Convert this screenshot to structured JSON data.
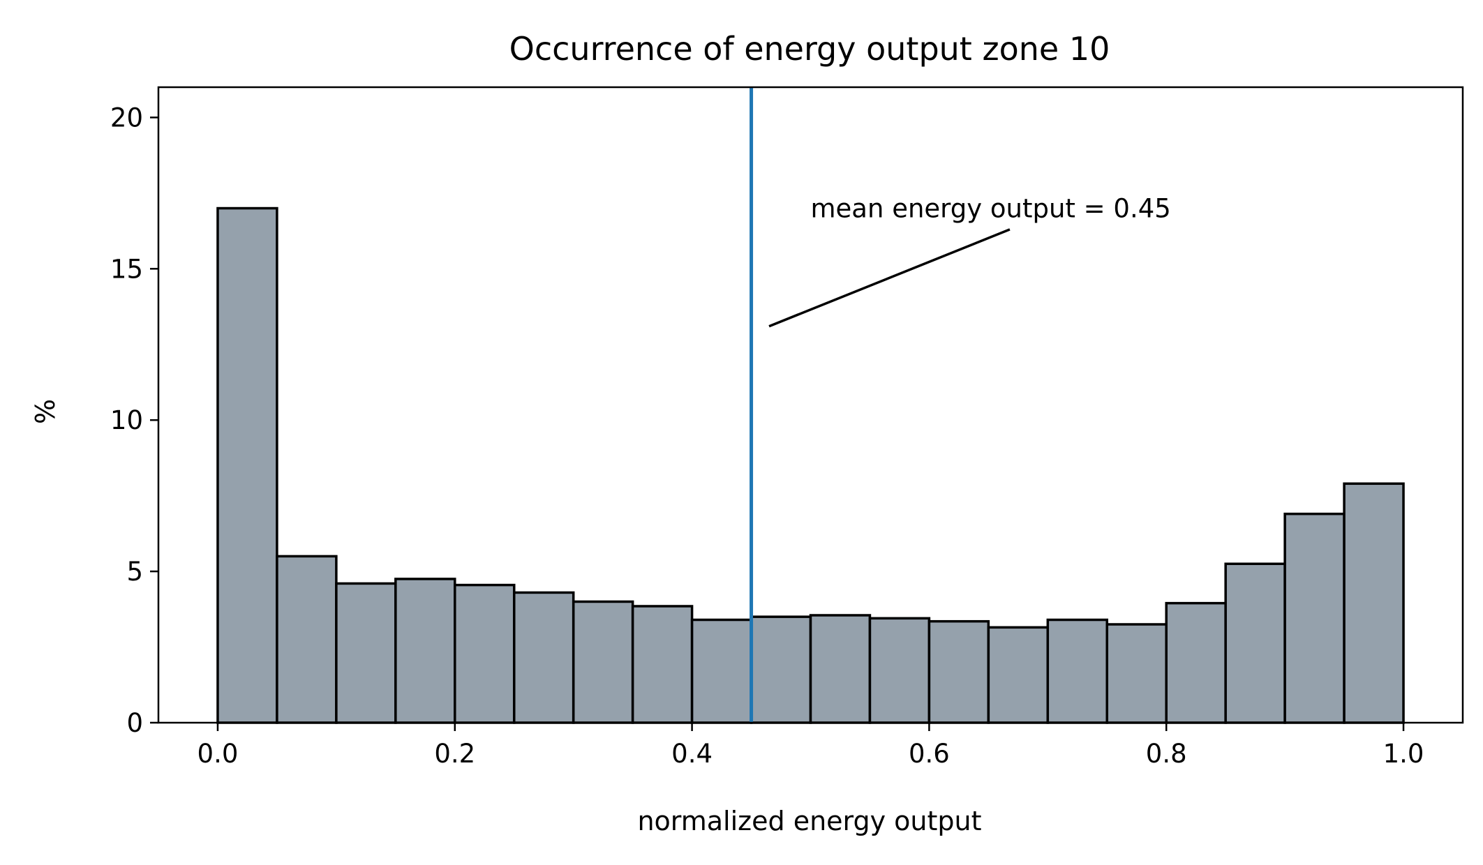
{
  "chart_data": {
    "type": "bar",
    "title": "Occurrence of energy output zone 10",
    "xlabel": "normalized energy output",
    "ylabel": "%",
    "xlim": [
      -0.05,
      1.05
    ],
    "ylim": [
      0,
      21
    ],
    "xticks": [
      0.0,
      0.2,
      0.4,
      0.6,
      0.8,
      1.0
    ],
    "xtick_labels": [
      "0.0",
      "0.2",
      "0.4",
      "0.6",
      "0.8",
      "1.0"
    ],
    "yticks": [
      0,
      5,
      10,
      15,
      20
    ],
    "ytick_labels": [
      "0",
      "5",
      "10",
      "15",
      "20"
    ],
    "grid": false,
    "bins": [
      {
        "x0": 0.0,
        "x1": 0.05,
        "value": 17.0
      },
      {
        "x0": 0.05,
        "x1": 0.1,
        "value": 5.5
      },
      {
        "x0": 0.1,
        "x1": 0.15,
        "value": 4.6
      },
      {
        "x0": 0.15,
        "x1": 0.2,
        "value": 4.75
      },
      {
        "x0": 0.2,
        "x1": 0.25,
        "value": 4.55
      },
      {
        "x0": 0.25,
        "x1": 0.3,
        "value": 4.3
      },
      {
        "x0": 0.3,
        "x1": 0.35,
        "value": 4.0
      },
      {
        "x0": 0.35,
        "x1": 0.4,
        "value": 3.85
      },
      {
        "x0": 0.4,
        "x1": 0.45,
        "value": 3.4
      },
      {
        "x0": 0.45,
        "x1": 0.5,
        "value": 3.5
      },
      {
        "x0": 0.5,
        "x1": 0.55,
        "value": 3.55
      },
      {
        "x0": 0.55,
        "x1": 0.6,
        "value": 3.45
      },
      {
        "x0": 0.6,
        "x1": 0.65,
        "value": 3.35
      },
      {
        "x0": 0.65,
        "x1": 0.7,
        "value": 3.15
      },
      {
        "x0": 0.7,
        "x1": 0.75,
        "value": 3.4
      },
      {
        "x0": 0.75,
        "x1": 0.8,
        "value": 3.25
      },
      {
        "x0": 0.8,
        "x1": 0.85,
        "value": 3.95
      },
      {
        "x0": 0.85,
        "x1": 0.9,
        "value": 5.25
      },
      {
        "x0": 0.9,
        "x1": 0.95,
        "value": 6.9
      },
      {
        "x0": 0.95,
        "x1": 1.0,
        "value": 7.9
      }
    ],
    "mean_line": {
      "x": 0.45,
      "color": "#1f77b4"
    },
    "annotation": {
      "text": "mean energy output = 0.45",
      "text_anchor": {
        "x": 0.5,
        "y": 17.0
      },
      "arrow_from": {
        "x": 0.668,
        "y": 16.3
      },
      "arrow_to": {
        "x": 0.465,
        "y": 13.1
      }
    },
    "bar_fill": "#95a1ac",
    "bar_edge": "#000000"
  }
}
